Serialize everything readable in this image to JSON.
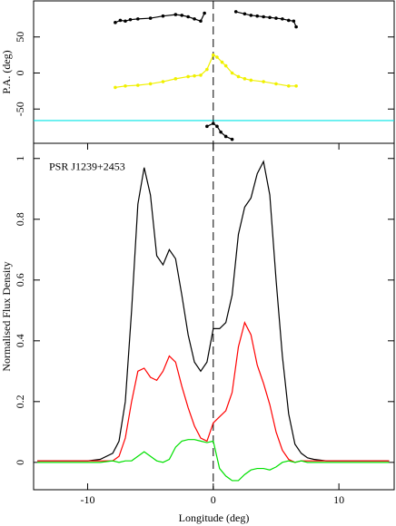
{
  "chart_data": [
    {
      "type": "line",
      "ylabel": "P.A. (deg)",
      "xlim": [
        -14.3,
        14.4
      ],
      "ylim": [
        -97.5,
        100
      ],
      "yticks": [
        -50,
        0,
        50
      ],
      "vline": 0,
      "hline": -66,
      "hline_color": "#00e5e5",
      "markers": true,
      "series": [
        {
          "color": "#000000",
          "x": [
            -7.8,
            -7.4,
            -7,
            -6.6,
            -6,
            -5,
            -4,
            -3,
            -2.5,
            -2,
            -1.5,
            -1,
            -0.7,
            0.5,
            1.8,
            2.5,
            3,
            3.5,
            4,
            4.5,
            5,
            5.5,
            6,
            6.4,
            6.6
          ],
          "values": [
            70,
            73,
            72,
            74,
            75,
            76,
            79,
            81,
            80,
            78,
            75,
            72,
            83,
            null,
            85,
            82,
            80,
            79,
            78,
            77,
            76,
            75,
            73,
            72,
            64
          ]
        },
        {
          "color": "#000000",
          "x": [
            -0.5,
            0,
            0.3,
            0.6,
            1,
            1.5
          ],
          "values": [
            -74,
            -70,
            -74,
            -82,
            -88,
            -92
          ]
        },
        {
          "color": "#f0f000",
          "x": [
            -7.8,
            -7,
            -6,
            -5,
            -4,
            -3,
            -2,
            -1.5,
            -1,
            -0.5,
            0,
            0.3,
            0.7,
            1,
            1.5,
            2,
            2.5,
            3,
            4,
            5,
            6,
            6.6
          ],
          "values": [
            -20,
            -18,
            -17,
            -15,
            -12,
            -8,
            -5,
            -4,
            -3,
            5,
            25,
            22,
            15,
            10,
            0,
            -5,
            -8,
            -10,
            -12,
            -15,
            -18,
            -18
          ]
        }
      ]
    },
    {
      "type": "line",
      "xlabel": "Longitude (deg)",
      "ylabel": "Normalised Flux Density",
      "annotation": "PSR J1239+2453",
      "xlim": [
        -14.3,
        14.4
      ],
      "ylim": [
        -0.09,
        1.05
      ],
      "xticks": [
        -10,
        0,
        10
      ],
      "yticks": [
        0,
        0.2,
        0.4,
        0.6,
        0.8,
        1
      ],
      "vline": 0,
      "x": [
        -14,
        -12,
        -10,
        -9,
        -8,
        -7.5,
        -7,
        -6.5,
        -6,
        -5.5,
        -5,
        -4.5,
        -4,
        -3.5,
        -3,
        -2.5,
        -2,
        -1.5,
        -1,
        -0.5,
        0,
        0.5,
        1,
        1.5,
        2,
        2.5,
        3,
        3.5,
        4,
        4.5,
        5,
        5.5,
        6,
        6.5,
        7,
        7.5,
        8,
        9,
        10,
        12,
        14
      ],
      "series": [
        {
          "color": "#000000",
          "values": [
            0.005,
            0.005,
            0.005,
            0.01,
            0.03,
            0.07,
            0.2,
            0.5,
            0.85,
            0.97,
            0.88,
            0.68,
            0.65,
            0.7,
            0.67,
            0.55,
            0.42,
            0.33,
            0.3,
            0.33,
            0.44,
            0.44,
            0.46,
            0.55,
            0.75,
            0.84,
            0.87,
            0.95,
            0.99,
            0.88,
            0.6,
            0.35,
            0.16,
            0.06,
            0.03,
            0.015,
            0.01,
            0.005,
            0.005,
            0.005,
            0.005
          ]
        },
        {
          "color": "#ff0000",
          "values": [
            0.005,
            0.005,
            0.005,
            0.005,
            0.005,
            0.02,
            0.08,
            0.2,
            0.3,
            0.31,
            0.28,
            0.27,
            0.3,
            0.35,
            0.33,
            0.25,
            0.18,
            0.12,
            0.08,
            0.07,
            0.13,
            0.15,
            0.17,
            0.23,
            0.38,
            0.46,
            0.42,
            0.32,
            0.26,
            0.19,
            0.1,
            0.04,
            0.01,
            0,
            0.005,
            0.005,
            0.005,
            0.005,
            0.005,
            0.005,
            0.005
          ]
        },
        {
          "color": "#00e000",
          "values": [
            0,
            0,
            0,
            0,
            0.005,
            0,
            0.005,
            0.005,
            0.02,
            0.035,
            0.02,
            0.005,
            0,
            0.01,
            0.05,
            0.07,
            0.075,
            0.075,
            0.07,
            0.065,
            0.07,
            -0.02,
            -0.045,
            -0.06,
            -0.06,
            -0.04,
            -0.025,
            -0.02,
            -0.02,
            -0.025,
            -0.015,
            0,
            0.005,
            0,
            0.005,
            0,
            0,
            0,
            0,
            0,
            0
          ]
        }
      ]
    }
  ]
}
